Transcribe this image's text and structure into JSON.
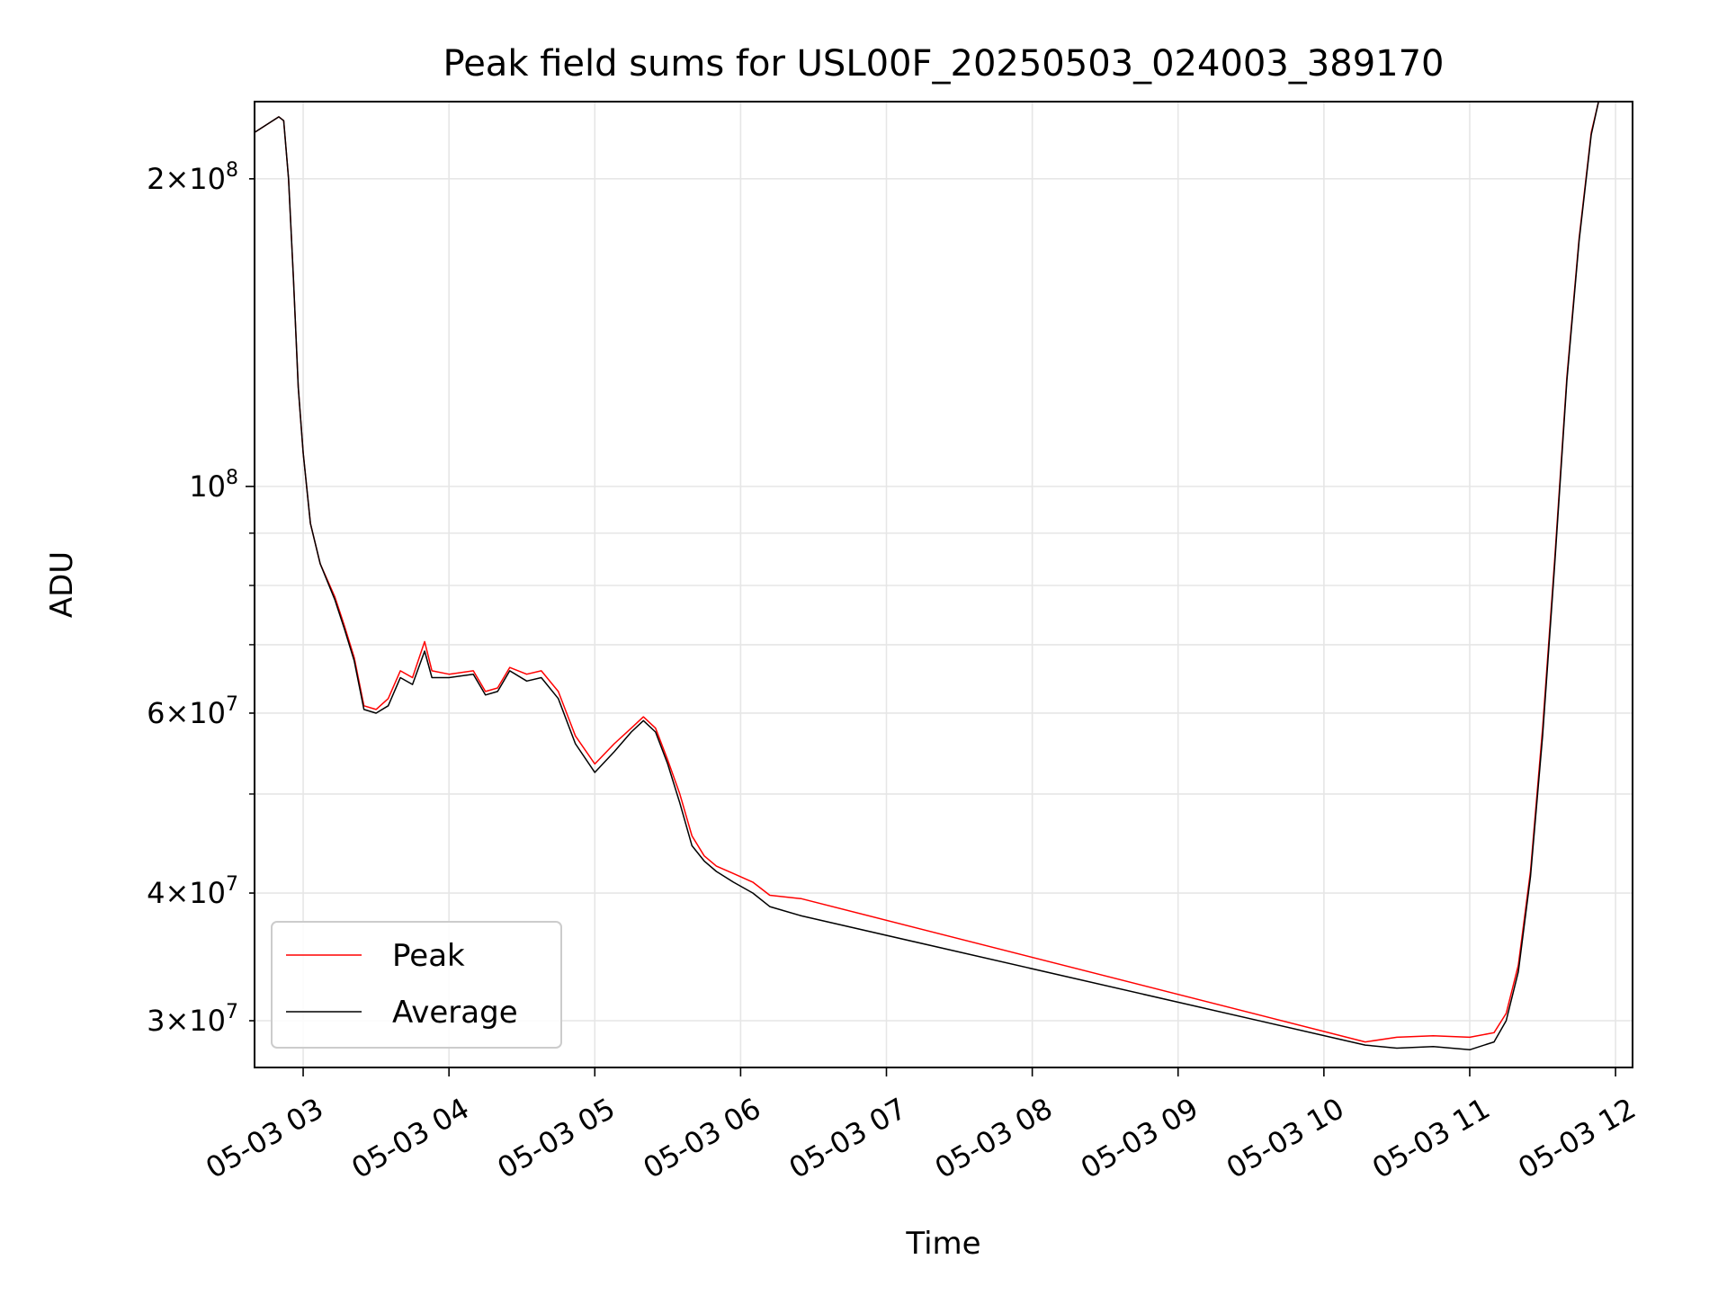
{
  "chart_data": {
    "type": "line",
    "title": "Peak field sums for USL00F_20250503_024003_389170",
    "xlabel": "Time",
    "ylabel": "ADU",
    "y_scale": "log",
    "ylim": [
      27000000,
      238000000
    ],
    "xlim": [
      "2025-05-03 02:40",
      "2025-05-03 12:07"
    ],
    "grid": true,
    "legend_position": "lower-left",
    "x_ticks": [
      {
        "label": "05-03 03",
        "value": "2025-05-03 03:00"
      },
      {
        "label": "05-03 04",
        "value": "2025-05-03 04:00"
      },
      {
        "label": "05-03 05",
        "value": "2025-05-03 05:00"
      },
      {
        "label": "05-03 06",
        "value": "2025-05-03 06:00"
      },
      {
        "label": "05-03 07",
        "value": "2025-05-03 07:00"
      },
      {
        "label": "05-03 08",
        "value": "2025-05-03 08:00"
      },
      {
        "label": "05-03 09",
        "value": "2025-05-03 09:00"
      },
      {
        "label": "05-03 10",
        "value": "2025-05-03 10:00"
      },
      {
        "label": "05-03 11",
        "value": "2025-05-03 11:00"
      },
      {
        "label": "05-03 12",
        "value": "2025-05-03 12:00"
      }
    ],
    "y_major_ticks": [
      {
        "value": 100000000,
        "base": "10",
        "exp": "8"
      }
    ],
    "y_minor_labeled_ticks": [
      {
        "value": 30000000,
        "mant": "3",
        "base": "10",
        "exp": "7"
      },
      {
        "value": 40000000,
        "mant": "4",
        "base": "10",
        "exp": "7"
      },
      {
        "value": 60000000,
        "mant": "6",
        "base": "10",
        "exp": "7"
      },
      {
        "value": 200000000,
        "mant": "2",
        "base": "10",
        "exp": "8"
      }
    ],
    "y_minor_unlabeled_ticks": [
      50000000,
      70000000,
      80000000,
      90000000
    ],
    "series": [
      {
        "name": "Peak",
        "color": "#ff0000",
        "points": [
          [
            "2025-05-03 02:40",
            222000000
          ],
          [
            "2025-05-03 02:50",
            230000000
          ],
          [
            "2025-05-03 02:52",
            228000000
          ],
          [
            "2025-05-03 02:54",
            200000000
          ],
          [
            "2025-05-03 02:56",
            160000000
          ],
          [
            "2025-05-03 02:58",
            125000000
          ],
          [
            "2025-05-03 03:00",
            108000000
          ],
          [
            "2025-05-03 03:03",
            92000000
          ],
          [
            "2025-05-03 03:07",
            84000000
          ],
          [
            "2025-05-03 03:13",
            78000000
          ],
          [
            "2025-05-03 03:17",
            73000000
          ],
          [
            "2025-05-03 03:21",
            68000000
          ],
          [
            "2025-05-03 03:25",
            61000000
          ],
          [
            "2025-05-03 03:30",
            60500000
          ],
          [
            "2025-05-03 03:35",
            62000000
          ],
          [
            "2025-05-03 03:40",
            66000000
          ],
          [
            "2025-05-03 03:45",
            65000000
          ],
          [
            "2025-05-03 03:50",
            70500000
          ],
          [
            "2025-05-03 03:53",
            66000000
          ],
          [
            "2025-05-03 04:00",
            65500000
          ],
          [
            "2025-05-03 04:10",
            66000000
          ],
          [
            "2025-05-03 04:15",
            63000000
          ],
          [
            "2025-05-03 04:20",
            63500000
          ],
          [
            "2025-05-03 04:25",
            66500000
          ],
          [
            "2025-05-03 04:32",
            65500000
          ],
          [
            "2025-05-03 04:38",
            66000000
          ],
          [
            "2025-05-03 04:45",
            63000000
          ],
          [
            "2025-05-03 04:52",
            57000000
          ],
          [
            "2025-05-03 05:00",
            53500000
          ],
          [
            "2025-05-03 05:08",
            56000000
          ],
          [
            "2025-05-03 05:15",
            58000000
          ],
          [
            "2025-05-03 05:20",
            59500000
          ],
          [
            "2025-05-03 05:25",
            58000000
          ],
          [
            "2025-05-03 05:30",
            54000000
          ],
          [
            "2025-05-03 05:35",
            50000000
          ],
          [
            "2025-05-03 05:40",
            45500000
          ],
          [
            "2025-05-03 05:45",
            43500000
          ],
          [
            "2025-05-03 05:50",
            42500000
          ],
          [
            "2025-05-03 05:57",
            41800000
          ],
          [
            "2025-05-03 06:05",
            41000000
          ],
          [
            "2025-05-03 06:12",
            39800000
          ],
          [
            "2025-05-03 06:25",
            39500000
          ],
          [
            "2025-05-03 10:17",
            28600000
          ],
          [
            "2025-05-03 10:30",
            28900000
          ],
          [
            "2025-05-03 10:45",
            29000000
          ],
          [
            "2025-05-03 11:00",
            28900000
          ],
          [
            "2025-05-03 11:10",
            29200000
          ],
          [
            "2025-05-03 11:15",
            30500000
          ],
          [
            "2025-05-03 11:20",
            34000000
          ],
          [
            "2025-05-03 11:25",
            42000000
          ],
          [
            "2025-05-03 11:30",
            58000000
          ],
          [
            "2025-05-03 11:35",
            85000000
          ],
          [
            "2025-05-03 11:40",
            128000000
          ],
          [
            "2025-05-03 11:45",
            175000000
          ],
          [
            "2025-05-03 11:50",
            222000000
          ],
          [
            "2025-05-03 11:53",
            238000000
          ]
        ]
      },
      {
        "name": "Average",
        "color": "#000000",
        "points": [
          [
            "2025-05-03 02:40",
            222000000
          ],
          [
            "2025-05-03 02:50",
            230000000
          ],
          [
            "2025-05-03 02:52",
            228000000
          ],
          [
            "2025-05-03 02:54",
            200000000
          ],
          [
            "2025-05-03 02:56",
            160000000
          ],
          [
            "2025-05-03 02:58",
            125000000
          ],
          [
            "2025-05-03 03:00",
            108000000
          ],
          [
            "2025-05-03 03:03",
            92000000
          ],
          [
            "2025-05-03 03:07",
            84000000
          ],
          [
            "2025-05-03 03:13",
            77500000
          ],
          [
            "2025-05-03 03:17",
            72500000
          ],
          [
            "2025-05-03 03:21",
            67500000
          ],
          [
            "2025-05-03 03:25",
            60500000
          ],
          [
            "2025-05-03 03:30",
            60000000
          ],
          [
            "2025-05-03 03:35",
            61000000
          ],
          [
            "2025-05-03 03:40",
            65000000
          ],
          [
            "2025-05-03 03:45",
            64000000
          ],
          [
            "2025-05-03 03:50",
            69000000
          ],
          [
            "2025-05-03 03:53",
            65000000
          ],
          [
            "2025-05-03 04:00",
            65000000
          ],
          [
            "2025-05-03 04:10",
            65500000
          ],
          [
            "2025-05-03 04:15",
            62500000
          ],
          [
            "2025-05-03 04:20",
            63000000
          ],
          [
            "2025-05-03 04:25",
            66000000
          ],
          [
            "2025-05-03 04:32",
            64500000
          ],
          [
            "2025-05-03 04:38",
            65000000
          ],
          [
            "2025-05-03 04:45",
            62000000
          ],
          [
            "2025-05-03 04:52",
            56000000
          ],
          [
            "2025-05-03 05:00",
            52500000
          ],
          [
            "2025-05-03 05:08",
            55000000
          ],
          [
            "2025-05-03 05:15",
            57500000
          ],
          [
            "2025-05-03 05:20",
            59000000
          ],
          [
            "2025-05-03 05:25",
            57500000
          ],
          [
            "2025-05-03 05:30",
            53500000
          ],
          [
            "2025-05-03 05:35",
            49000000
          ],
          [
            "2025-05-03 05:40",
            44500000
          ],
          [
            "2025-05-03 05:45",
            43000000
          ],
          [
            "2025-05-03 05:50",
            42000000
          ],
          [
            "2025-05-03 05:57",
            41000000
          ],
          [
            "2025-05-03 06:05",
            40000000
          ],
          [
            "2025-05-03 06:12",
            38800000
          ],
          [
            "2025-05-03 06:25",
            38000000
          ],
          [
            "2025-05-03 10:17",
            28400000
          ],
          [
            "2025-05-03 10:30",
            28200000
          ],
          [
            "2025-05-03 10:45",
            28300000
          ],
          [
            "2025-05-03 11:00",
            28100000
          ],
          [
            "2025-05-03 11:10",
            28600000
          ],
          [
            "2025-05-03 11:15",
            30000000
          ],
          [
            "2025-05-03 11:20",
            33500000
          ],
          [
            "2025-05-03 11:25",
            41500000
          ],
          [
            "2025-05-03 11:30",
            57000000
          ],
          [
            "2025-05-03 11:35",
            84000000
          ],
          [
            "2025-05-03 11:40",
            127000000
          ],
          [
            "2025-05-03 11:45",
            174000000
          ],
          [
            "2025-05-03 11:50",
            221000000
          ],
          [
            "2025-05-03 11:53",
            238000000
          ]
        ]
      }
    ]
  }
}
